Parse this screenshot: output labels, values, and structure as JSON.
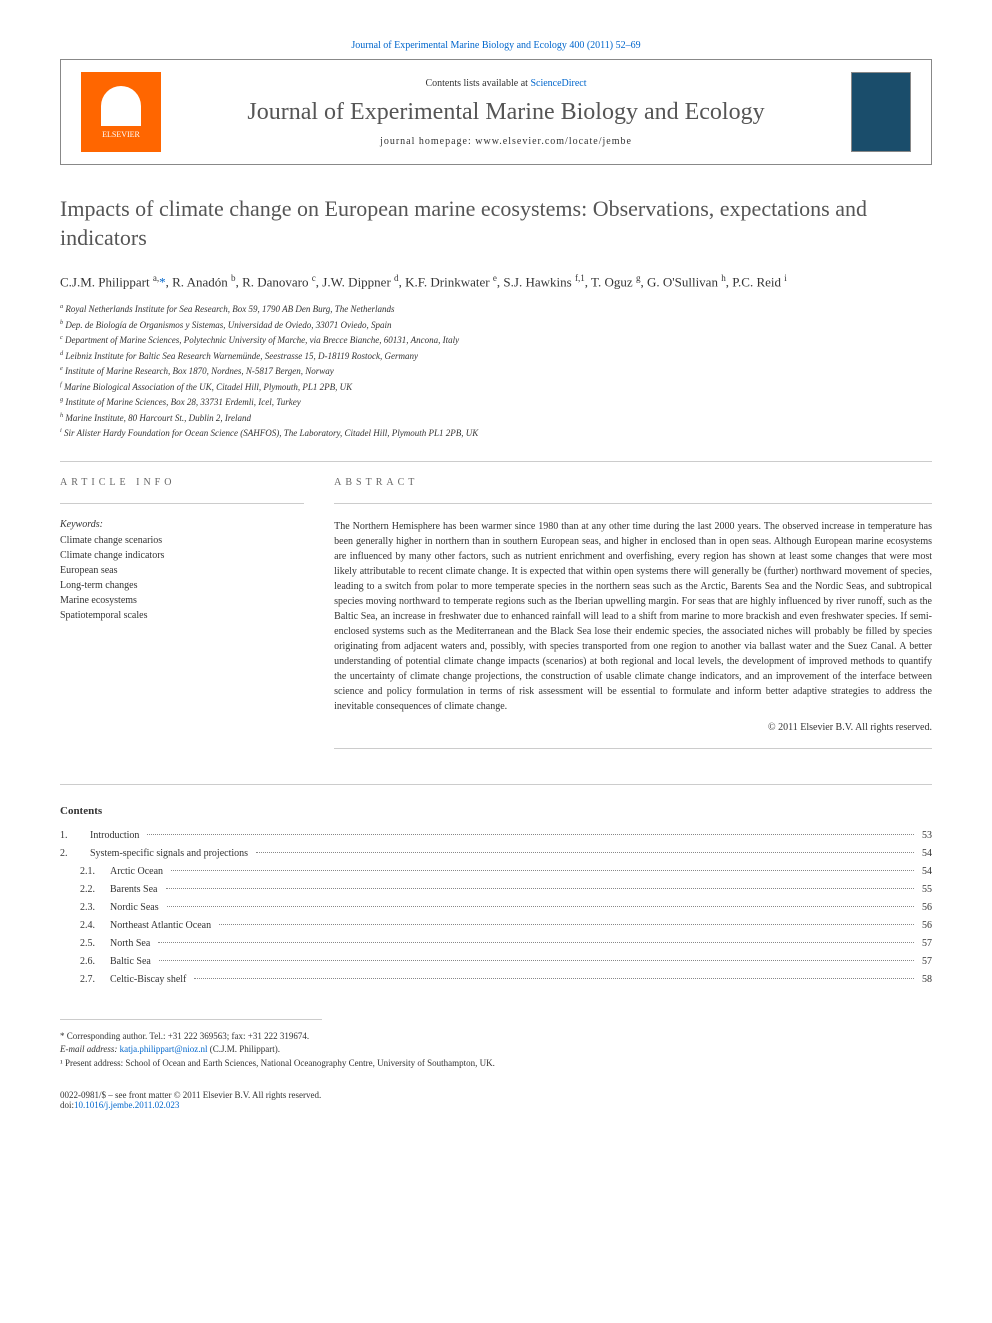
{
  "header": {
    "top_link_prefix": "Journal of Experimental Marine Biology and Ecology 400 (2011) 52–69",
    "contents_prefix": "Contents lists available at ",
    "contents_link": "ScienceDirect",
    "journal_title": "Journal of Experimental Marine Biology and Ecology",
    "homepage_prefix": "journal homepage: ",
    "homepage_url": "www.elsevier.com/locate/jembe",
    "elsevier_label": "ELSEVIER"
  },
  "article": {
    "title": "Impacts of climate change on European marine ecosystems: Observations, expectations and indicators",
    "authors_html": "C.J.M. Philippart <sup>a,</sup><span class='corr'>*</span>, R. Anadón <sup>b</sup>, R. Danovaro <sup>c</sup>, J.W. Dippner <sup>d</sup>, K.F. Drinkwater <sup>e</sup>, S.J. Hawkins <sup>f,1</sup>, T. Oguz <sup>g</sup>, G. O'Sullivan <sup>h</sup>, P.C. Reid <sup>i</sup>"
  },
  "affiliations": [
    {
      "sup": "a",
      "text": "Royal Netherlands Institute for Sea Research, Box 59, 1790 AB Den Burg, The Netherlands"
    },
    {
      "sup": "b",
      "text": "Dep. de Biología de Organismos y Sistemas, Universidad de Oviedo, 33071 Oviedo, Spain"
    },
    {
      "sup": "c",
      "text": "Department of Marine Sciences, Polytechnic University of Marche, via Brecce Bianche, 60131, Ancona, Italy"
    },
    {
      "sup": "d",
      "text": "Leibniz Institute for Baltic Sea Research Warnemünde, Seestrasse 15, D-18119 Rostock, Germany"
    },
    {
      "sup": "e",
      "text": "Institute of Marine Research, Box 1870, Nordnes, N-5817 Bergen, Norway"
    },
    {
      "sup": "f",
      "text": "Marine Biological Association of the UK, Citadel Hill, Plymouth, PL1 2PB, UK"
    },
    {
      "sup": "g",
      "text": "Institute of Marine Sciences, Box 28, 33731 Erdemli, Icel, Turkey"
    },
    {
      "sup": "h",
      "text": "Marine Institute, 80 Harcourt St., Dublin 2, Ireland"
    },
    {
      "sup": "i",
      "text": "Sir Alister Hardy Foundation for Ocean Science (SAHFOS), The Laboratory, Citadel Hill, Plymouth PL1 2PB, UK"
    }
  ],
  "article_info": {
    "header": "ARTICLE INFO",
    "keywords_label": "Keywords:",
    "keywords": [
      "Climate change scenarios",
      "Climate change indicators",
      "European seas",
      "Long-term changes",
      "Marine ecosystems",
      "Spatiotemporal scales"
    ]
  },
  "abstract": {
    "header": "ABSTRACT",
    "text": "The Northern Hemisphere has been warmer since 1980 than at any other time during the last 2000 years. The observed increase in temperature has been generally higher in northern than in southern European seas, and higher in enclosed than in open seas. Although European marine ecosystems are influenced by many other factors, such as nutrient enrichment and overfishing, every region has shown at least some changes that were most likely attributable to recent climate change. It is expected that within open systems there will generally be (further) northward movement of species, leading to a switch from polar to more temperate species in the northern seas such as the Arctic, Barents Sea and the Nordic Seas, and subtropical species moving northward to temperate regions such as the Iberian upwelling margin. For seas that are highly influenced by river runoff, such as the Baltic Sea, an increase in freshwater due to enhanced rainfall will lead to a shift from marine to more brackish and even freshwater species. If semi-enclosed systems such as the Mediterranean and the Black Sea lose their endemic species, the associated niches will probably be filled by species originating from adjacent waters and, possibly, with species transported from one region to another via ballast water and the Suez Canal. A better understanding of potential climate change impacts (scenarios) at both regional and local levels, the development of improved methods to quantify the uncertainty of climate change projections, the construction of usable climate change indicators, and an improvement of the interface between science and policy formulation in terms of risk assessment will be essential to formulate and inform better adaptive strategies to address the inevitable consequences of climate change.",
    "copyright": "© 2011 Elsevier B.V. All rights reserved."
  },
  "contents": {
    "header": "Contents",
    "items": [
      {
        "num": "1.",
        "label": "Introduction",
        "page": "53",
        "sub": false
      },
      {
        "num": "2.",
        "label": "System-specific signals and projections",
        "page": "54",
        "sub": false
      },
      {
        "num": "2.1.",
        "label": "Arctic Ocean",
        "page": "54",
        "sub": true
      },
      {
        "num": "2.2.",
        "label": "Barents Sea",
        "page": "55",
        "sub": true
      },
      {
        "num": "2.3.",
        "label": "Nordic Seas",
        "page": "56",
        "sub": true
      },
      {
        "num": "2.4.",
        "label": "Northeast Atlantic Ocean",
        "page": "56",
        "sub": true
      },
      {
        "num": "2.5.",
        "label": "North Sea",
        "page": "57",
        "sub": true
      },
      {
        "num": "2.6.",
        "label": "Baltic Sea",
        "page": "57",
        "sub": true
      },
      {
        "num": "2.7.",
        "label": "Celtic-Biscay shelf",
        "page": "58",
        "sub": true
      }
    ]
  },
  "footer": {
    "corresponding": "* Corresponding author. Tel.: +31 222 369563; fax: +31 222 319674.",
    "email_label": "E-mail address: ",
    "email": "katja.philippart@nioz.nl",
    "email_suffix": " (C.J.M. Philippart).",
    "present_address": "¹ Present address: School of Ocean and Earth Sciences, National Oceanography Centre, University of Southampton, UK.",
    "issn": "0022-0981/$ – see front matter © 2011 Elsevier B.V. All rights reserved.",
    "doi_prefix": "doi:",
    "doi": "10.1016/j.jembe.2011.02.023"
  }
}
